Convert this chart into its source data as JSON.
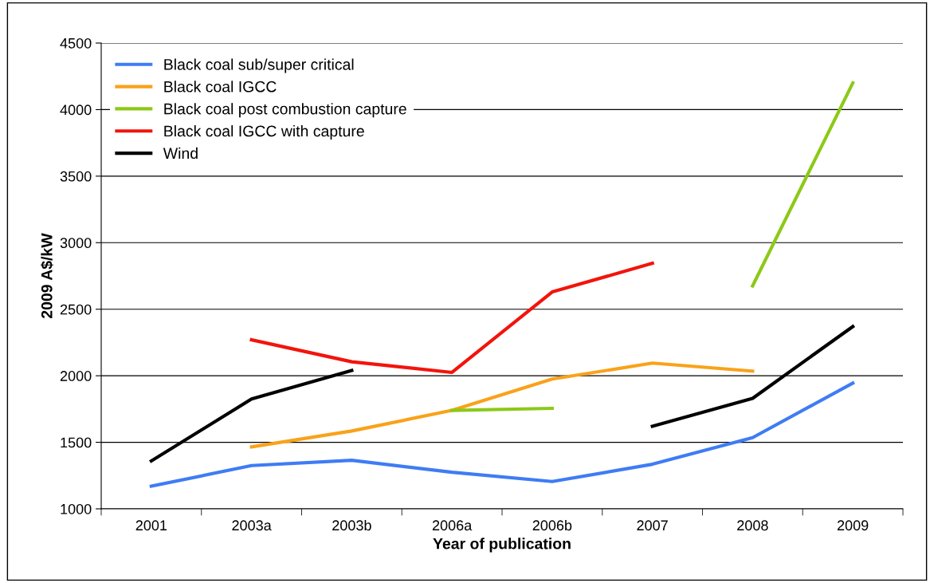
{
  "chart_data": {
    "type": "line",
    "xlabel": "Year of publication",
    "ylabel": "2009 A$/kW",
    "categories": [
      "2001",
      "2003a",
      "2003b",
      "2006a",
      "2006b",
      "2007",
      "2008",
      "2009"
    ],
    "series": [
      {
        "name": "Black coal sub/super critical",
        "color": "#3f7cf4",
        "values": [
          1170,
          1325,
          1365,
          1275,
          1205,
          1335,
          1535,
          1945
        ]
      },
      {
        "name": "Black coal IGCC",
        "color": "#f9a21a",
        "values": [
          null,
          1465,
          1585,
          1740,
          1975,
          2095,
          2035,
          null
        ]
      },
      {
        "name": "Black coal post combustion capture",
        "color": "#8cc918",
        "values": [
          null,
          null,
          null,
          1740,
          1755,
          null,
          2675,
          4200
        ]
      },
      {
        "name": "Black coal IGCC with capture",
        "color": "#f2140c",
        "values": [
          null,
          2270,
          2105,
          2025,
          2630,
          2845,
          null,
          null
        ]
      },
      {
        "name": "Wind",
        "color": "#000000",
        "values": [
          1360,
          1825,
          2040,
          null,
          null,
          1620,
          1830,
          2370
        ]
      }
    ],
    "ylim": [
      1000,
      4500
    ],
    "yticks": [
      1000,
      1500,
      2000,
      2500,
      3000,
      3500,
      4000,
      4500
    ],
    "grid": "y",
    "legend": "top left",
    "marker": "none",
    "line_style": "solid"
  }
}
